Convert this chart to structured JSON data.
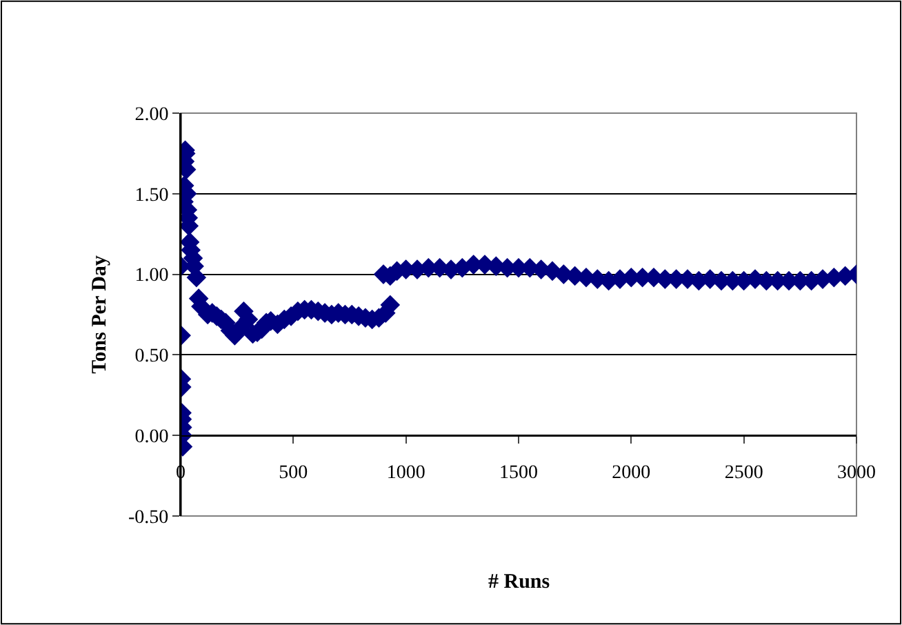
{
  "chart_data": {
    "type": "scatter",
    "xlabel": "# Runs",
    "ylabel": "Tons Per Day",
    "x": [
      1,
      2,
      3,
      4,
      5,
      6,
      7,
      8,
      9,
      14,
      16,
      18,
      20,
      22,
      25,
      28,
      30,
      33,
      36,
      40,
      45,
      55,
      60,
      70,
      80,
      90,
      120,
      140,
      160,
      180,
      200,
      220,
      240,
      260,
      280,
      300,
      320,
      340,
      360,
      380,
      400,
      430,
      460,
      490,
      520,
      550,
      580,
      610,
      640,
      670,
      700,
      730,
      760,
      790,
      820,
      850,
      880,
      910,
      930,
      900,
      930,
      960,
      1000,
      1050,
      1100,
      1150,
      1200,
      1250,
      1300,
      1350,
      1400,
      1450,
      1500,
      1550,
      1600,
      1650,
      1700,
      1750,
      1800,
      1850,
      1900,
      1950,
      2000,
      2050,
      2100,
      2150,
      2200,
      2250,
      2300,
      2350,
      2400,
      2450,
      2500,
      2550,
      2600,
      2650,
      2700,
      2750,
      2800,
      2850,
      2900,
      2950,
      3000
    ],
    "values": [
      1.05,
      0.62,
      0.35,
      0.3,
      0.14,
      0.1,
      0.05,
      0.0,
      -0.07,
      1.45,
      1.55,
      1.7,
      1.77,
      1.75,
      1.65,
      1.5,
      1.4,
      1.35,
      1.3,
      1.2,
      1.15,
      1.1,
      1.05,
      0.98,
      0.85,
      0.8,
      0.75,
      0.76,
      0.74,
      0.72,
      0.7,
      0.65,
      0.62,
      0.66,
      0.77,
      0.72,
      0.63,
      0.64,
      0.66,
      0.7,
      0.71,
      0.69,
      0.72,
      0.74,
      0.77,
      0.78,
      0.78,
      0.77,
      0.76,
      0.75,
      0.76,
      0.75,
      0.75,
      0.74,
      0.73,
      0.72,
      0.73,
      0.76,
      0.81,
      1.0,
      0.99,
      1.02,
      1.03,
      1.03,
      1.04,
      1.04,
      1.03,
      1.04,
      1.06,
      1.06,
      1.05,
      1.04,
      1.04,
      1.04,
      1.03,
      1.02,
      1.0,
      0.99,
      0.98,
      0.97,
      0.96,
      0.97,
      0.98,
      0.98,
      0.98,
      0.97,
      0.97,
      0.97,
      0.96,
      0.97,
      0.96,
      0.96,
      0.96,
      0.97,
      0.96,
      0.96,
      0.96,
      0.96,
      0.96,
      0.97,
      0.98,
      0.99,
      1.0
    ],
    "color": "#000080",
    "marker": "diamond",
    "xlim": [
      0,
      3000
    ],
    "xticks": [
      0,
      500,
      1000,
      1500,
      2000,
      2500,
      3000
    ],
    "ylim": [
      -0.5,
      2.0
    ],
    "yticks": [
      {
        "value": -0.5,
        "label": "-0.50"
      },
      {
        "value": 0,
        "label": "0.00"
      },
      {
        "value": 0.5,
        "label": "0.50"
      },
      {
        "value": 1.0,
        "label": "1.00"
      },
      {
        "value": 1.5,
        "label": "1.50"
      },
      {
        "value": 2.0,
        "label": "2.00"
      }
    ],
    "grid": "y"
  }
}
